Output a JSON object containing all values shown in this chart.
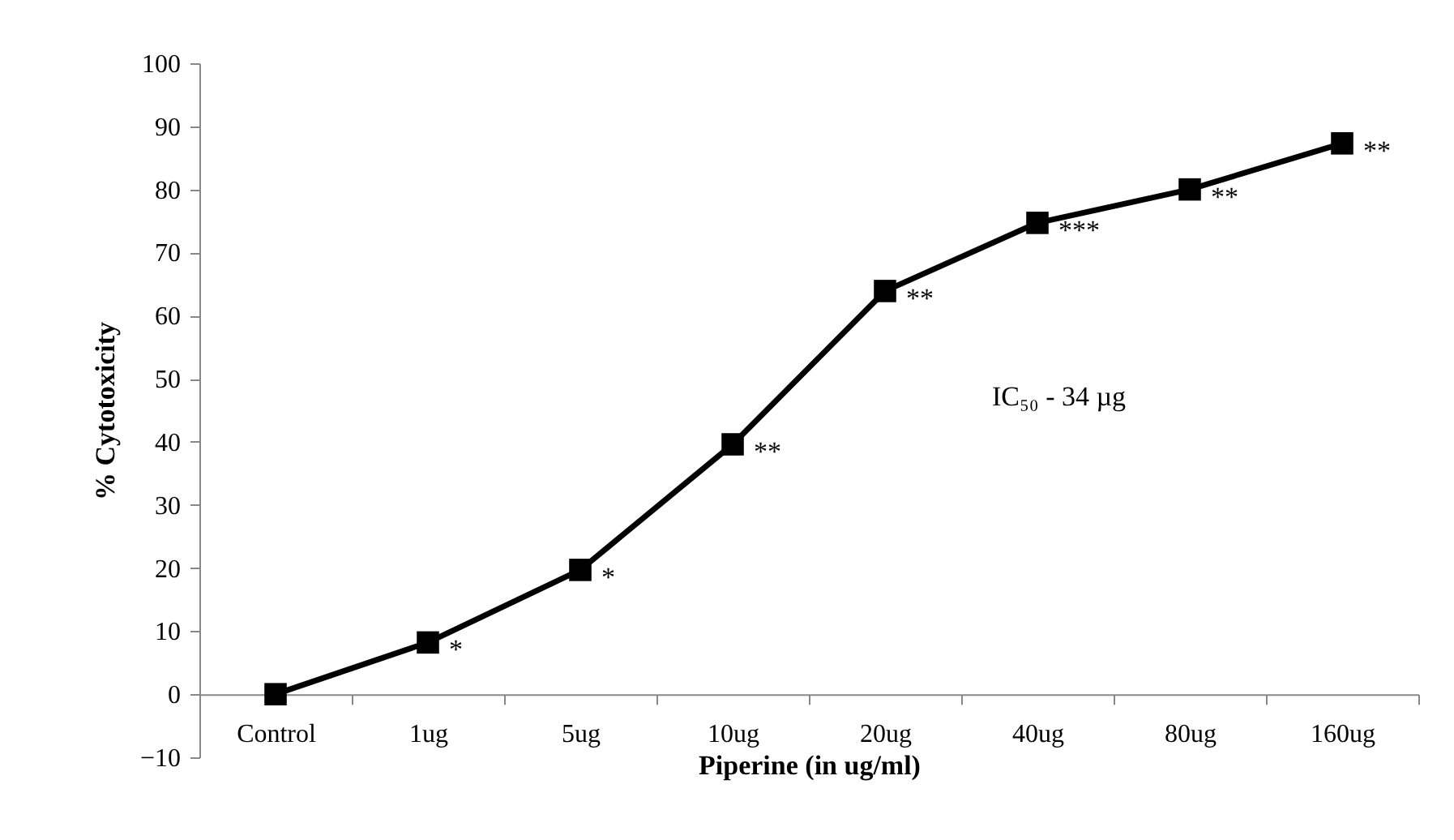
{
  "chart_data": {
    "type": "line",
    "xlabel": "Piperine (in ug/ml)",
    "ylabel": "% Cytotoxicity",
    "categories": [
      "Control",
      "1ug",
      "5ug",
      "10ug",
      "20ug",
      "40ug",
      "80ug",
      "160ug"
    ],
    "series": [
      {
        "color": "#000000",
        "values": [
          0,
          8.2,
          19.7,
          39.6,
          63.9,
          74.7,
          80,
          87.3
        ]
      }
    ],
    "ylim": [
      -10,
      100
    ],
    "yticks": [
      -10,
      0,
      10,
      20,
      30,
      40,
      50,
      60,
      70,
      80,
      90,
      100
    ],
    "marker": "square",
    "line_style": "solid",
    "annotations": [
      {
        "text": "*",
        "x": "1ug",
        "y": 8.2
      },
      {
        "text": "*",
        "x": "5ug",
        "y": 19.7
      },
      {
        "text": "**",
        "x": "10ug",
        "y": 39.6
      },
      {
        "text": "**",
        "x": "20ug",
        "y": 63.9
      },
      {
        "text": "***",
        "x": "40ug",
        "y": 74.7
      },
      {
        "text": "**",
        "x": "80ug",
        "y": 80
      },
      {
        "text": "**",
        "x": "160ug",
        "y": 87.3
      },
      "IC₅₀ - 34 µg"
    ]
  }
}
